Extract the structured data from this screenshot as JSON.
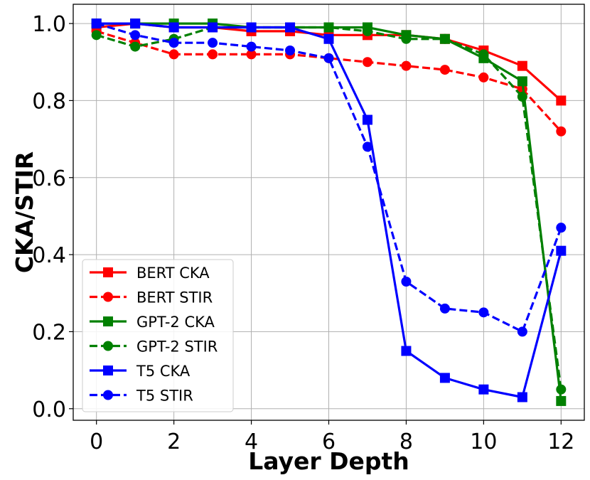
{
  "chart_data": {
    "type": "line",
    "xlabel": "Layer Depth",
    "ylabel": "CKA/STIR",
    "xlim": [
      -0.6,
      12.6
    ],
    "ylim": [
      -0.03,
      1.05
    ],
    "xticks": [
      "0",
      "2",
      "4",
      "6",
      "8",
      "10",
      "12"
    ],
    "yticks": [
      "0.0",
      "0.2",
      "0.4",
      "0.6",
      "0.8",
      "1.0"
    ],
    "grid": true,
    "legend_position": "lower-left",
    "x": [
      0,
      1,
      2,
      3,
      4,
      5,
      6,
      7,
      8,
      9,
      10,
      11,
      12
    ],
    "series": [
      {
        "name": "BERT CKA",
        "color": "#ff0000",
        "style": "solid",
        "marker": "square",
        "values": [
          0.99,
          1.0,
          0.99,
          0.99,
          0.98,
          0.98,
          0.97,
          0.97,
          0.97,
          0.96,
          0.93,
          0.89,
          0.8
        ]
      },
      {
        "name": "BERT STIR",
        "color": "#ff0000",
        "style": "dashed",
        "marker": "circle",
        "values": [
          0.98,
          0.95,
          0.92,
          0.92,
          0.92,
          0.92,
          0.91,
          0.9,
          0.89,
          0.88,
          0.86,
          0.83,
          0.72
        ]
      },
      {
        "name": "GPT-2 CKA",
        "color": "#008000",
        "style": "solid",
        "marker": "square",
        "values": [
          1.0,
          1.0,
          1.0,
          1.0,
          0.99,
          0.99,
          0.99,
          0.99,
          0.97,
          0.96,
          0.91,
          0.85,
          0.02
        ]
      },
      {
        "name": "GPT-2 STIR",
        "color": "#008000",
        "style": "dashed",
        "marker": "circle",
        "values": [
          0.97,
          0.94,
          0.96,
          0.99,
          0.99,
          0.99,
          0.99,
          0.98,
          0.96,
          0.96,
          0.92,
          0.81,
          0.05
        ]
      },
      {
        "name": "T5 CKA",
        "color": "#0000ff",
        "style": "solid",
        "marker": "square",
        "values": [
          1.0,
          1.0,
          0.99,
          0.99,
          0.99,
          0.99,
          0.96,
          0.75,
          0.15,
          0.08,
          0.05,
          0.03,
          0.41
        ]
      },
      {
        "name": "T5 STIR",
        "color": "#0000ff",
        "style": "dashed",
        "marker": "circle",
        "values": [
          1.0,
          0.97,
          0.95,
          0.95,
          0.94,
          0.93,
          0.91,
          0.68,
          0.33,
          0.26,
          0.25,
          0.2,
          0.47
        ]
      }
    ]
  }
}
